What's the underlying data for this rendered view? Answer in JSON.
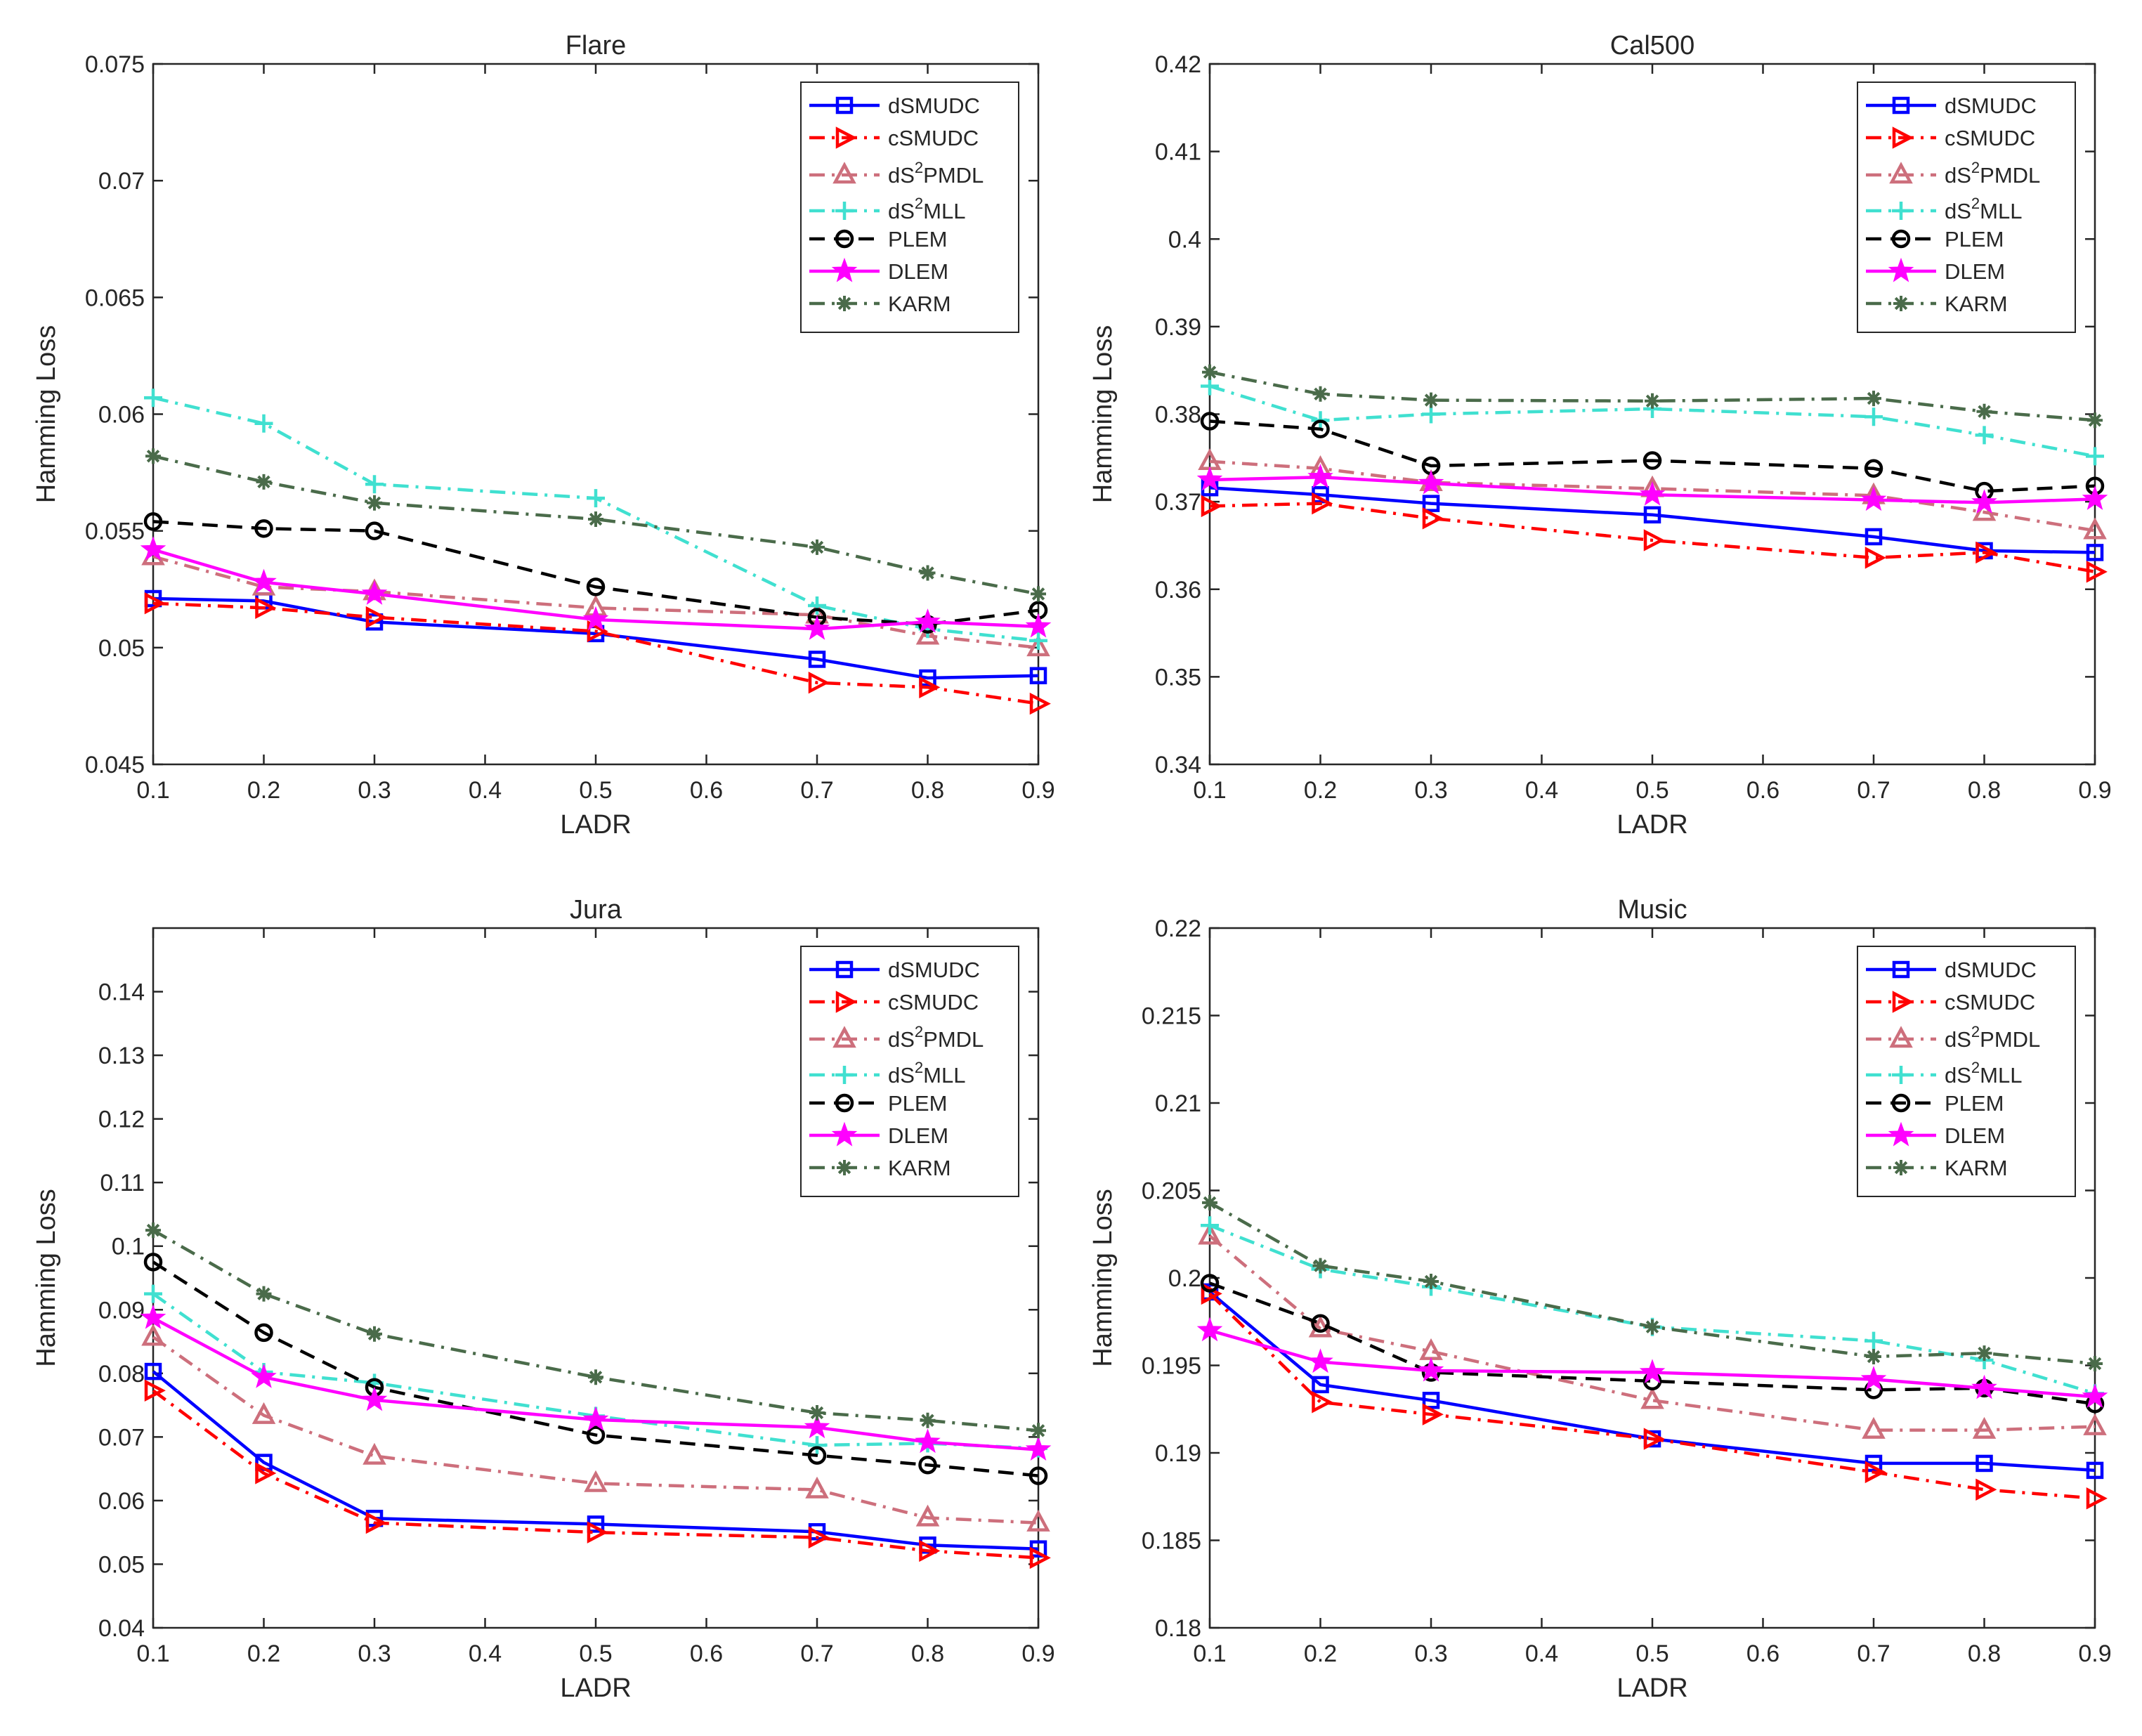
{
  "chart_data": [
    {
      "type": "line",
      "title": "Flare",
      "xlabel": "LADR",
      "ylabel": "Hamming Loss",
      "xlim": [
        0.1,
        0.9
      ],
      "ylim": [
        0.045,
        0.075
      ],
      "xticks": [
        0.1,
        0.2,
        0.3,
        0.4,
        0.5,
        0.6,
        0.7,
        0.8,
        0.9
      ],
      "xtick_labels": [
        "0.1",
        "0.2",
        "0.3",
        "0.4",
        "0.5",
        "0.6",
        "0.7",
        "0.8",
        "0.9"
      ],
      "yticks": [
        0.045,
        0.05,
        0.055,
        0.06,
        0.065,
        0.07,
        0.075
      ],
      "ytick_labels": [
        "0.045",
        "0.05",
        "0.055",
        "0.06",
        "0.065",
        "0.07",
        "0.075"
      ],
      "legend_position": "top-right",
      "x": [
        0.1,
        0.2,
        0.3,
        0.5,
        0.7,
        0.8,
        0.9
      ],
      "series": [
        {
          "name": "dSMUDC",
          "values": [
            0.0521,
            0.052,
            0.0511,
            0.0506,
            0.0495,
            0.0487,
            0.0488
          ]
        },
        {
          "name": "cSMUDC",
          "values": [
            0.0519,
            0.0517,
            0.0513,
            0.0507,
            0.0485,
            0.0483,
            0.0476
          ]
        },
        {
          "name": "dS2PMDL",
          "values": [
            0.0539,
            0.0526,
            0.0524,
            0.0517,
            0.0514,
            0.0505,
            0.05
          ]
        },
        {
          "name": "dS2MLL",
          "values": [
            0.0607,
            0.0596,
            0.057,
            0.0564,
            0.0518,
            0.0508,
            0.0503
          ]
        },
        {
          "name": "PLEM",
          "values": [
            0.0554,
            0.0551,
            0.055,
            0.0526,
            0.0513,
            0.051,
            0.0516
          ]
        },
        {
          "name": "DLEM",
          "values": [
            0.0542,
            0.0528,
            0.0523,
            0.0512,
            0.0508,
            0.0511,
            0.0509
          ]
        },
        {
          "name": "KARM",
          "values": [
            0.0582,
            0.0571,
            0.0562,
            0.0555,
            0.0543,
            0.0532,
            0.0523
          ]
        }
      ]
    },
    {
      "type": "line",
      "title": "Cal500",
      "xlabel": "LADR",
      "ylabel": "Hamming Loss",
      "xlim": [
        0.1,
        0.9
      ],
      "ylim": [
        0.34,
        0.42
      ],
      "xticks": [
        0.1,
        0.2,
        0.3,
        0.4,
        0.5,
        0.6,
        0.7,
        0.8,
        0.9
      ],
      "xtick_labels": [
        "0.1",
        "0.2",
        "0.3",
        "0.4",
        "0.5",
        "0.6",
        "0.7",
        "0.8",
        "0.9"
      ],
      "yticks": [
        0.34,
        0.35,
        0.36,
        0.37,
        0.38,
        0.39,
        0.4,
        0.41,
        0.42
      ],
      "ytick_labels": [
        "0.34",
        "0.35",
        "0.36",
        "0.37",
        "0.38",
        "0.39",
        "0.4",
        "0.41",
        "0.42"
      ],
      "legend_position": "top-right",
      "x": [
        0.1,
        0.2,
        0.3,
        0.5,
        0.7,
        0.8,
        0.9
      ],
      "series": [
        {
          "name": "dSMUDC",
          "values": [
            0.3716,
            0.3708,
            0.3698,
            0.3685,
            0.366,
            0.3644,
            0.3642
          ]
        },
        {
          "name": "cSMUDC",
          "values": [
            0.3695,
            0.3698,
            0.3681,
            0.3656,
            0.3636,
            0.3642,
            0.362
          ]
        },
        {
          "name": "dS2PMDL",
          "values": [
            0.3746,
            0.3738,
            0.3722,
            0.3715,
            0.3707,
            0.3688,
            0.3667
          ]
        },
        {
          "name": "dS2MLL",
          "values": [
            0.3832,
            0.3793,
            0.38,
            0.3806,
            0.3797,
            0.3776,
            0.3752
          ]
        },
        {
          "name": "PLEM",
          "values": [
            0.3792,
            0.3783,
            0.3741,
            0.3747,
            0.3738,
            0.3712,
            0.3718
          ]
        },
        {
          "name": "DLEM",
          "values": [
            0.3725,
            0.3728,
            0.3721,
            0.3708,
            0.3702,
            0.3699,
            0.3703
          ]
        },
        {
          "name": "KARM",
          "values": [
            0.3848,
            0.3823,
            0.3816,
            0.3815,
            0.3818,
            0.3803,
            0.3793
          ]
        }
      ]
    },
    {
      "type": "line",
      "title": "Jura",
      "xlabel": "LADR",
      "ylabel": "Hamming Loss",
      "xlim": [
        0.1,
        0.9
      ],
      "ylim": [
        0.04,
        0.15
      ],
      "xticks": [
        0.1,
        0.2,
        0.3,
        0.4,
        0.5,
        0.6,
        0.7,
        0.8,
        0.9
      ],
      "xtick_labels": [
        "0.1",
        "0.2",
        "0.3",
        "0.4",
        "0.5",
        "0.6",
        "0.7",
        "0.8",
        "0.9"
      ],
      "yticks": [
        0.04,
        0.05,
        0.06,
        0.07,
        0.08,
        0.09,
        0.1,
        0.11,
        0.12,
        0.13,
        0.14
      ],
      "ytick_labels": [
        "0.04",
        "0.05",
        "0.06",
        "0.07",
        "0.08",
        "0.09",
        "0.1",
        "0.11",
        "0.12",
        "0.13",
        "0.14"
      ],
      "legend_position": "top-right",
      "x": [
        0.1,
        0.2,
        0.3,
        0.5,
        0.7,
        0.8,
        0.9
      ],
      "series": [
        {
          "name": "dSMUDC",
          "values": [
            0.0803,
            0.066,
            0.0572,
            0.0563,
            0.0551,
            0.053,
            0.0524
          ]
        },
        {
          "name": "cSMUDC",
          "values": [
            0.0773,
            0.0643,
            0.0565,
            0.055,
            0.0542,
            0.0521,
            0.051
          ]
        },
        {
          "name": "dS2PMDL",
          "values": [
            0.0857,
            0.0734,
            0.067,
            0.0627,
            0.0617,
            0.0573,
            0.0565
          ]
        },
        {
          "name": "dS2MLL",
          "values": [
            0.0925,
            0.0802,
            0.0785,
            0.0733,
            0.0687,
            0.069,
            0.0682
          ]
        },
        {
          "name": "PLEM",
          "values": [
            0.0975,
            0.0864,
            0.0778,
            0.0703,
            0.0671,
            0.0656,
            0.0639
          ]
        },
        {
          "name": "DLEM",
          "values": [
            0.0887,
            0.0794,
            0.0758,
            0.0727,
            0.0715,
            0.0692,
            0.068
          ]
        },
        {
          "name": "KARM",
          "values": [
            0.1025,
            0.0925,
            0.0862,
            0.0794,
            0.0738,
            0.0726,
            0.071
          ]
        }
      ]
    },
    {
      "type": "line",
      "title": "Music",
      "xlabel": "LADR",
      "ylabel": "Hamming Loss",
      "xlim": [
        0.1,
        0.9
      ],
      "ylim": [
        0.18,
        0.22
      ],
      "xticks": [
        0.1,
        0.2,
        0.3,
        0.4,
        0.5,
        0.6,
        0.7,
        0.8,
        0.9
      ],
      "xtick_labels": [
        "0.1",
        "0.2",
        "0.3",
        "0.4",
        "0.5",
        "0.6",
        "0.7",
        "0.8",
        "0.9"
      ],
      "yticks": [
        0.18,
        0.185,
        0.19,
        0.195,
        0.2,
        0.205,
        0.21,
        0.215,
        0.22
      ],
      "ytick_labels": [
        "0.18",
        "0.185",
        "0.19",
        "0.195",
        "0.2",
        "0.205",
        "0.21",
        "0.215",
        "0.22"
      ],
      "legend_position": "top-right",
      "x": [
        0.1,
        0.2,
        0.3,
        0.5,
        0.7,
        0.8,
        0.9
      ],
      "series": [
        {
          "name": "dSMUDC",
          "values": [
            0.1992,
            0.1939,
            0.193,
            0.1908,
            0.1894,
            0.1894,
            0.189
          ]
        },
        {
          "name": "cSMUDC",
          "values": [
            0.1991,
            0.1929,
            0.1922,
            0.1908,
            0.1889,
            0.1879,
            0.1874
          ]
        },
        {
          "name": "dS2PMDL",
          "values": [
            0.2024,
            0.1971,
            0.1958,
            0.193,
            0.1913,
            0.1913,
            0.1915
          ]
        },
        {
          "name": "dS2MLL",
          "values": [
            0.203,
            0.2005,
            0.1995,
            0.1972,
            0.1964,
            0.1953,
            0.1934
          ]
        },
        {
          "name": "PLEM",
          "values": [
            0.1997,
            0.1974,
            0.1946,
            0.1941,
            0.1936,
            0.1937,
            0.1928
          ]
        },
        {
          "name": "DLEM",
          "values": [
            0.197,
            0.1952,
            0.1947,
            0.1946,
            0.1942,
            0.1937,
            0.1932
          ]
        },
        {
          "name": "KARM",
          "values": [
            0.2043,
            0.2007,
            0.1998,
            0.1972,
            0.1955,
            0.1957,
            0.1951
          ]
        }
      ]
    }
  ],
  "legend": [
    {
      "name": "dSMUDC",
      "label_base": "dSMUDC",
      "sup": "",
      "label_rest": "",
      "color": "#0000ff",
      "dash": "solid",
      "marker": "square"
    },
    {
      "name": "cSMUDC",
      "label_base": "cSMUDC",
      "sup": "",
      "label_rest": "",
      "color": "#ff0000",
      "dash": "dashdot",
      "marker": "triangle-right"
    },
    {
      "name": "dS2PMDL",
      "label_base": "dS",
      "sup": "2",
      "label_rest": "PMDL",
      "color": "#cd6f7c",
      "dash": "dashdot",
      "marker": "triangle-up"
    },
    {
      "name": "dS2MLL",
      "label_base": "dS",
      "sup": "2",
      "label_rest": "MLL",
      "color": "#40e0d0",
      "dash": "dashdot",
      "marker": "plus"
    },
    {
      "name": "PLEM",
      "label_base": "PLEM",
      "sup": "",
      "label_rest": "",
      "color": "#000000",
      "dash": "dashed",
      "marker": "circle"
    },
    {
      "name": "DLEM",
      "label_base": "DLEM",
      "sup": "",
      "label_rest": "",
      "color": "#ff00ff",
      "dash": "solid",
      "marker": "star"
    },
    {
      "name": "KARM",
      "label_base": "KARM",
      "sup": "",
      "label_rest": "",
      "color": "#4a6b4a",
      "dash": "dashdot",
      "marker": "asterisk"
    }
  ]
}
